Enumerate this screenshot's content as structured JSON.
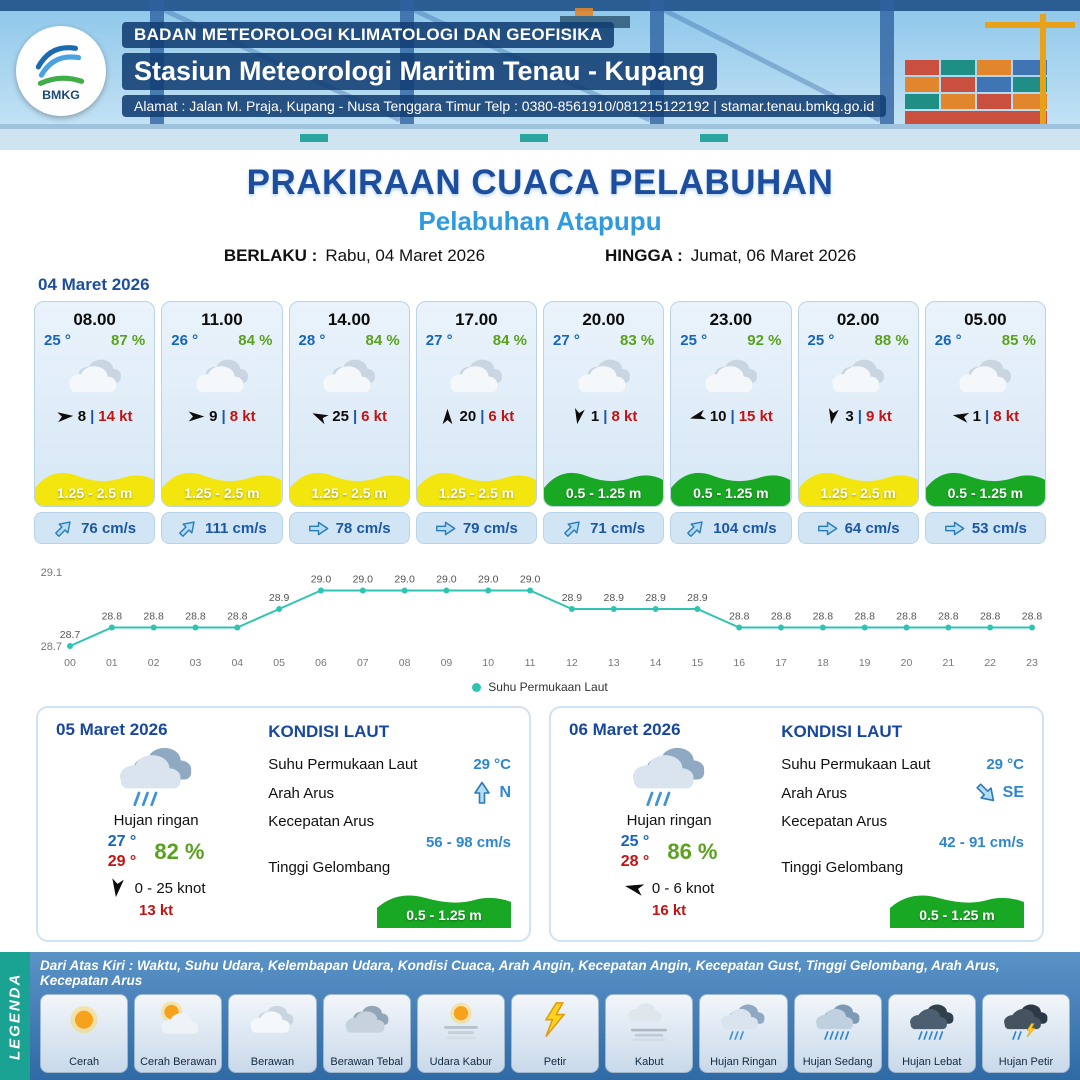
{
  "header": {
    "logo_text": "BMKG",
    "agency": "BADAN METEOROLOGI KLIMATOLOGI DAN GEOFISIKA",
    "station": "Stasiun Meteorologi Maritim Tenau - Kupang",
    "address": "Alamat : Jalan M. Praja, Kupang - Nusa Tenggara Timur Telp : 0380-8561910/081215122192  | stamar.tenau.bmkg.go.id"
  },
  "title": {
    "main": "PRAKIRAAN CUACA PELABUHAN",
    "port": "Pelabuhan Atapupu",
    "berlaku_label": "BERLAKU :",
    "berlaku_value": "Rabu, 04 Maret 2026",
    "hingga_label": "HINGGA :",
    "hingga_value": "Jumat, 06 Maret 2026"
  },
  "forecast": {
    "date": "04 Maret 2026",
    "cards": [
      {
        "time": "08.00",
        "temp": "25 °",
        "humidity": "87 %",
        "icon": "berawan",
        "wind_dir_deg": -5,
        "wind_speed": "8",
        "wind_gust": "14 kt",
        "wave": "1.25 - 2.5 m",
        "wave_color": "#f2e60e",
        "current_dir_deg": -45,
        "current_speed": "76 cm/s"
      },
      {
        "time": "11.00",
        "temp": "26 °",
        "humidity": "84 %",
        "icon": "berawan",
        "wind_dir_deg": 0,
        "wind_speed": "9",
        "wind_gust": "8 kt",
        "wave": "1.25 - 2.5 m",
        "wave_color": "#f2e60e",
        "current_dir_deg": -45,
        "current_speed": "111 cm/s"
      },
      {
        "time": "14.00",
        "temp": "28 °",
        "humidity": "84 %",
        "icon": "berawan",
        "wind_dir_deg": 205,
        "wind_speed": "25",
        "wind_gust": "6 kt",
        "wave": "1.25 - 2.5 m",
        "wave_color": "#f2e60e",
        "current_dir_deg": 0,
        "current_speed": "78 cm/s"
      },
      {
        "time": "17.00",
        "temp": "27 °",
        "humidity": "84 %",
        "icon": "berawan",
        "wind_dir_deg": 270,
        "wind_speed": "20",
        "wind_gust": "6 kt",
        "wave": "1.25 - 2.5 m",
        "wave_color": "#f2e60e",
        "current_dir_deg": 0,
        "current_speed": "79 cm/s"
      },
      {
        "time": "20.00",
        "temp": "27 °",
        "humidity": "83 %",
        "icon": "berawan",
        "wind_dir_deg": 100,
        "wind_speed": "1",
        "wind_gust": "8 kt",
        "wave": "0.5 - 1.25 m",
        "wave_color": "#19a824",
        "current_dir_deg": -45,
        "current_speed": "71 cm/s"
      },
      {
        "time": "23.00",
        "temp": "25 °",
        "humidity": "92 %",
        "icon": "berawan",
        "wind_dir_deg": 165,
        "wind_speed": "10",
        "wind_gust": "15 kt",
        "wave": "0.5 - 1.25 m",
        "wave_color": "#19a824",
        "current_dir_deg": -45,
        "current_speed": "104 cm/s"
      },
      {
        "time": "02.00",
        "temp": "25 °",
        "humidity": "88 %",
        "icon": "berawan",
        "wind_dir_deg": 100,
        "wind_speed": "3",
        "wind_gust": "9 kt",
        "wave": "1.25 - 2.5 m",
        "wave_color": "#f2e60e",
        "current_dir_deg": 0,
        "current_speed": "64 cm/s"
      },
      {
        "time": "05.00",
        "temp": "26 °",
        "humidity": "85 %",
        "icon": "berawan",
        "wind_dir_deg": 190,
        "wind_speed": "1",
        "wind_gust": "8 kt",
        "wave": "0.5 - 1.25 m",
        "wave_color": "#19a824",
        "current_dir_deg": 0,
        "current_speed": "53 cm/s"
      }
    ]
  },
  "chart_data": {
    "type": "line",
    "series_name": "Suhu Permukaan Laut",
    "color": "#2fc4b2",
    "x": [
      "00",
      "01",
      "02",
      "03",
      "04",
      "05",
      "06",
      "07",
      "08",
      "09",
      "10",
      "11",
      "12",
      "13",
      "14",
      "15",
      "16",
      "17",
      "18",
      "19",
      "20",
      "21",
      "22",
      "23"
    ],
    "values": [
      28.7,
      28.8,
      28.8,
      28.8,
      28.8,
      28.9,
      29.0,
      29.0,
      29.0,
      29.0,
      29.0,
      29.0,
      28.9,
      28.9,
      28.9,
      28.9,
      28.8,
      28.8,
      28.8,
      28.8,
      28.8,
      28.8,
      28.8,
      28.8
    ],
    "ylim": [
      28.7,
      29.1
    ],
    "grid": false,
    "legend_position": "bottom"
  },
  "sea_labels": {
    "title": "KONDISI LAUT",
    "sst": "Suhu Permukaan Laut",
    "dir": "Arah Arus",
    "speed": "Kecepatan Arus",
    "wave": "Tinggi Gelombang"
  },
  "days": [
    {
      "date": "05 Maret 2026",
      "condition": "Hujan ringan",
      "icon": "hujan-ringan",
      "temp_min": "27 °",
      "temp_max": "29 °",
      "humidity": "82 %",
      "wind_dir_deg": 97,
      "wind_range": "0  - 25 knot",
      "gust": "13 kt",
      "sea": {
        "sst": "29 °C",
        "dir_label": "N",
        "dir_deg": 270,
        "speed": "56 - 98 cm/s",
        "wave": "0.5 - 1.25 m",
        "wave_color": "#19a824"
      }
    },
    {
      "date": "06 Maret 2026",
      "condition": "Hujan ringan",
      "icon": "hujan-ringan",
      "temp_min": "25 °",
      "temp_max": "28 °",
      "humidity": "86 %",
      "wind_dir_deg": 193,
      "wind_range": "0  - 6 knot",
      "gust": "16 kt",
      "sea": {
        "sst": "29 °C",
        "dir_label": "SE",
        "dir_deg": 45,
        "speed": "42 - 91 cm/s",
        "wave": "0.5 - 1.25 m",
        "wave_color": "#19a824"
      }
    }
  ],
  "legend": {
    "title": "LEGENDA",
    "note": "Dari Atas Kiri : Waktu, Suhu Udara, Kelembapan Udara, Kondisi Cuaca, Arah Angin, Kecepatan Angin, Kecepatan Gust, Tinggi Gelombang, Arah Arus, Kecepatan Arus",
    "items": [
      {
        "label": "Cerah",
        "icon": "cerah"
      },
      {
        "label": "Cerah Berawan",
        "icon": "cerah-berawan"
      },
      {
        "label": "Berawan",
        "icon": "berawan"
      },
      {
        "label": "Berawan Tebal",
        "icon": "berawan-tebal"
      },
      {
        "label": "Udara Kabur",
        "icon": "udara-kabur"
      },
      {
        "label": "Petir",
        "icon": "petir"
      },
      {
        "label": "Kabut",
        "icon": "kabut"
      },
      {
        "label": "Hujan Ringan",
        "icon": "hujan-ringan"
      },
      {
        "label": "Hujan Sedang",
        "icon": "hujan-sedang"
      },
      {
        "label": "Hujan Lebat",
        "icon": "hujan-lebat"
      },
      {
        "label": "Hujan Petir",
        "icon": "hujan-petir"
      }
    ]
  }
}
